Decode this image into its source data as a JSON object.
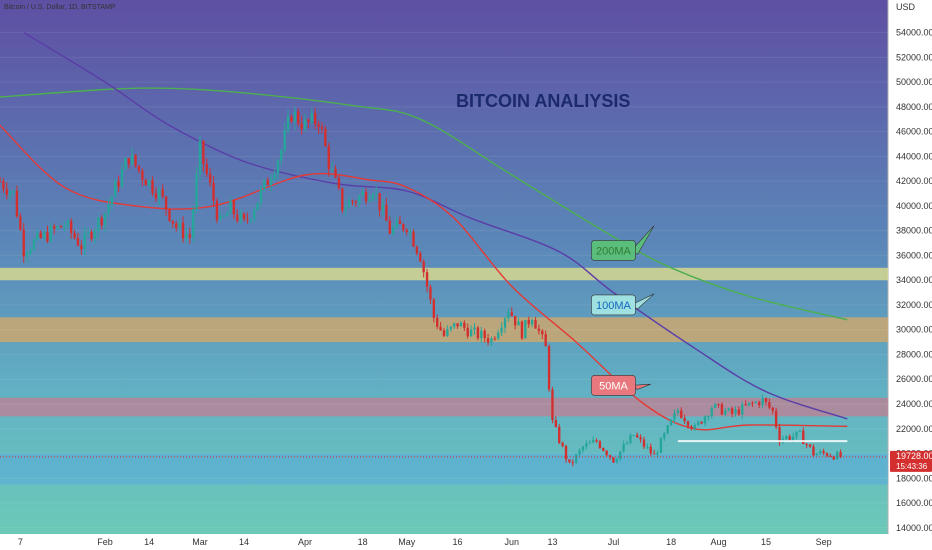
{
  "header": {
    "symbol_line": "Bitcoin / U.S. Dollar, 1D, BITSTAMP"
  },
  "price_axis": {
    "currency": "USD",
    "current_price": "19728.00",
    "countdown": "15:43:36",
    "tick_labels": [
      "54000.00",
      "52000.00",
      "50000.00",
      "48000.00",
      "46000.00",
      "44000.00",
      "42000.00",
      "40000.00",
      "38000.00",
      "36000.00",
      "34000.00",
      "32000.00",
      "30000.00",
      "28000.00",
      "26000.00",
      "24000.00",
      "22000.00",
      "20000.00",
      "18000.00",
      "16000.00",
      "14000.00"
    ]
  },
  "time_axis": {
    "tick_labels": [
      "7",
      "Feb",
      "14",
      "Mar",
      "14",
      "Apr",
      "18",
      "May",
      "16",
      "Jun",
      "13",
      "Jul",
      "18",
      "Aug",
      "15",
      "Sep"
    ]
  },
  "chart_data": {
    "type": "candlestick",
    "title": "BITCOIN ANALIYSIS",
    "y_range": [
      13500,
      55500
    ],
    "y_ticks": [
      54000,
      52000,
      50000,
      48000,
      46000,
      44000,
      42000,
      40000,
      38000,
      36000,
      34000,
      32000,
      30000,
      28000,
      26000,
      24000,
      22000,
      20000,
      18000,
      16000,
      14000
    ],
    "x_range": [
      "2022-01-01",
      "2022-09-20"
    ],
    "x_ticks": [
      "2022-01-07",
      "2022-02-01",
      "2022-02-14",
      "2022-03-01",
      "2022-03-14",
      "2022-04-01",
      "2022-04-18",
      "2022-05-01",
      "2022-05-16",
      "2022-06-01",
      "2022-06-13",
      "2022-07-01",
      "2022-07-18",
      "2022-08-01",
      "2022-08-15",
      "2022-09-01"
    ],
    "bull_color": "#26a69a",
    "bear_color": "#d32f2f",
    "price_anchors": [
      {
        "date": "2022-01-01",
        "close": 42000
      },
      {
        "date": "2022-01-05",
        "close": 41000
      },
      {
        "date": "2022-01-08",
        "close": 36500
      },
      {
        "date": "2022-01-12",
        "close": 37200
      },
      {
        "date": "2022-01-20",
        "close": 38500
      },
      {
        "date": "2022-01-25",
        "close": 36800
      },
      {
        "date": "2022-02-01",
        "close": 39500
      },
      {
        "date": "2022-02-08",
        "close": 44000
      },
      {
        "date": "2022-02-12",
        "close": 42500
      },
      {
        "date": "2022-02-17",
        "close": 41000
      },
      {
        "date": "2022-02-22",
        "close": 38300
      },
      {
        "date": "2022-02-26",
        "close": 37500
      },
      {
        "date": "2022-03-01",
        "close": 44500
      },
      {
        "date": "2022-03-07",
        "close": 38500
      },
      {
        "date": "2022-03-10",
        "close": 39800
      },
      {
        "date": "2022-03-14",
        "close": 38500
      },
      {
        "date": "2022-03-20",
        "close": 41500
      },
      {
        "date": "2022-03-25",
        "close": 44500
      },
      {
        "date": "2022-03-28",
        "close": 47500
      },
      {
        "date": "2022-04-01",
        "close": 46500
      },
      {
        "date": "2022-04-05",
        "close": 47000
      },
      {
        "date": "2022-04-08",
        "close": 43500
      },
      {
        "date": "2022-04-12",
        "close": 40000
      },
      {
        "date": "2022-04-16",
        "close": 40500
      },
      {
        "date": "2022-04-21",
        "close": 41500
      },
      {
        "date": "2022-04-26",
        "close": 38000
      },
      {
        "date": "2022-05-01",
        "close": 38500
      },
      {
        "date": "2022-05-05",
        "close": 36000
      },
      {
        "date": "2022-05-09",
        "close": 31000
      },
      {
        "date": "2022-05-12",
        "close": 29500
      },
      {
        "date": "2022-05-16",
        "close": 30500
      },
      {
        "date": "2022-05-20",
        "close": 29800
      },
      {
        "date": "2022-05-26",
        "close": 29200
      },
      {
        "date": "2022-05-31",
        "close": 31700
      },
      {
        "date": "2022-06-04",
        "close": 29800
      },
      {
        "date": "2022-06-07",
        "close": 31200
      },
      {
        "date": "2022-06-11",
        "close": 28500
      },
      {
        "date": "2022-06-13",
        "close": 22500
      },
      {
        "date": "2022-06-18",
        "close": 19000
      },
      {
        "date": "2022-06-22",
        "close": 20500
      },
      {
        "date": "2022-06-26",
        "close": 21000
      },
      {
        "date": "2022-07-01",
        "close": 19500
      },
      {
        "date": "2022-07-07",
        "close": 21500
      },
      {
        "date": "2022-07-13",
        "close": 19800
      },
      {
        "date": "2022-07-18",
        "close": 22500
      },
      {
        "date": "2022-07-20",
        "close": 23500
      },
      {
        "date": "2022-07-25",
        "close": 22000
      },
      {
        "date": "2022-07-30",
        "close": 23800
      },
      {
        "date": "2022-08-05",
        "close": 23200
      },
      {
        "date": "2022-08-10",
        "close": 23900
      },
      {
        "date": "2022-08-14",
        "close": 24300
      },
      {
        "date": "2022-08-17",
        "close": 23400
      },
      {
        "date": "2022-08-19",
        "close": 21200
      },
      {
        "date": "2022-08-25",
        "close": 21500
      },
      {
        "date": "2022-08-29",
        "close": 20000
      },
      {
        "date": "2022-09-02",
        "close": 20000
      },
      {
        "date": "2022-09-06",
        "close": 19728
      }
    ],
    "series": [
      {
        "name": "200MA",
        "color": "#4caf50",
        "points": [
          {
            "date": "2022-01-01",
            "value": 48800
          },
          {
            "date": "2022-02-01",
            "value": 49400
          },
          {
            "date": "2022-02-20",
            "value": 49500
          },
          {
            "date": "2022-03-15",
            "value": 49100
          },
          {
            "date": "2022-04-15",
            "value": 48100
          },
          {
            "date": "2022-05-05",
            "value": 47000
          },
          {
            "date": "2022-06-01",
            "value": 42500
          },
          {
            "date": "2022-07-01",
            "value": 37500
          },
          {
            "date": "2022-07-18",
            "value": 35000
          },
          {
            "date": "2022-08-10",
            "value": 32700
          },
          {
            "date": "2022-09-08",
            "value": 30800
          }
        ]
      },
      {
        "name": "100MA",
        "color": "#5b3da8",
        "points": [
          {
            "date": "2022-01-08",
            "value": 54000
          },
          {
            "date": "2022-02-01",
            "value": 50000
          },
          {
            "date": "2022-02-20",
            "value": 46500
          },
          {
            "date": "2022-03-15",
            "value": 43500
          },
          {
            "date": "2022-04-10",
            "value": 41800
          },
          {
            "date": "2022-05-01",
            "value": 41200
          },
          {
            "date": "2022-05-20",
            "value": 39000
          },
          {
            "date": "2022-06-15",
            "value": 36300
          },
          {
            "date": "2022-07-01",
            "value": 33000
          },
          {
            "date": "2022-07-25",
            "value": 28500
          },
          {
            "date": "2022-08-15",
            "value": 25000
          },
          {
            "date": "2022-09-08",
            "value": 22800
          }
        ]
      },
      {
        "name": "50MA",
        "color": "#e53935",
        "points": [
          {
            "date": "2022-01-01",
            "value": 46500
          },
          {
            "date": "2022-01-20",
            "value": 41500
          },
          {
            "date": "2022-02-10",
            "value": 40000
          },
          {
            "date": "2022-03-05",
            "value": 40000
          },
          {
            "date": "2022-04-01",
            "value": 42500
          },
          {
            "date": "2022-04-20",
            "value": 42100
          },
          {
            "date": "2022-05-01",
            "value": 41500
          },
          {
            "date": "2022-05-15",
            "value": 39000
          },
          {
            "date": "2022-06-01",
            "value": 33500
          },
          {
            "date": "2022-06-20",
            "value": 29000
          },
          {
            "date": "2022-07-10",
            "value": 24000
          },
          {
            "date": "2022-07-25",
            "value": 22000
          },
          {
            "date": "2022-08-10",
            "value": 22300
          },
          {
            "date": "2022-09-08",
            "value": 22200
          }
        ]
      }
    ],
    "zones": [
      {
        "low": 34000,
        "high": 35000,
        "color": "#e8e28a",
        "opacity": 0.75
      },
      {
        "low": 29000,
        "high": 31000,
        "color": "#d9a866",
        "opacity": 0.75
      },
      {
        "low": 23000,
        "high": 24500,
        "color": "#c97a8e",
        "opacity": 0.7
      },
      {
        "low": 17500,
        "high": 20000,
        "color": "#5aa9dc",
        "opacity": 0.55
      }
    ],
    "support_line": {
      "value": 21000,
      "start": "2022-07-20",
      "end": "2022-09-08"
    },
    "callouts": [
      {
        "label": "200MA",
        "date": "2022-07-01",
        "value": 36400,
        "target_date": "2022-07-13",
        "target_value": 38400,
        "fill": "#5bbd7c",
        "text_color": "#2e7d32"
      },
      {
        "label": "100MA",
        "date": "2022-07-01",
        "value": 32000,
        "target_date": "2022-07-13",
        "target_value": 32900,
        "fill": "#9fe0e0",
        "text_color": "#1565c0"
      },
      {
        "label": "50MA",
        "date": "2022-07-01",
        "value": 25500,
        "target_date": "2022-07-12",
        "target_value": 25600,
        "fill": "#e8787d",
        "text_color": "#ffffff"
      }
    ]
  }
}
